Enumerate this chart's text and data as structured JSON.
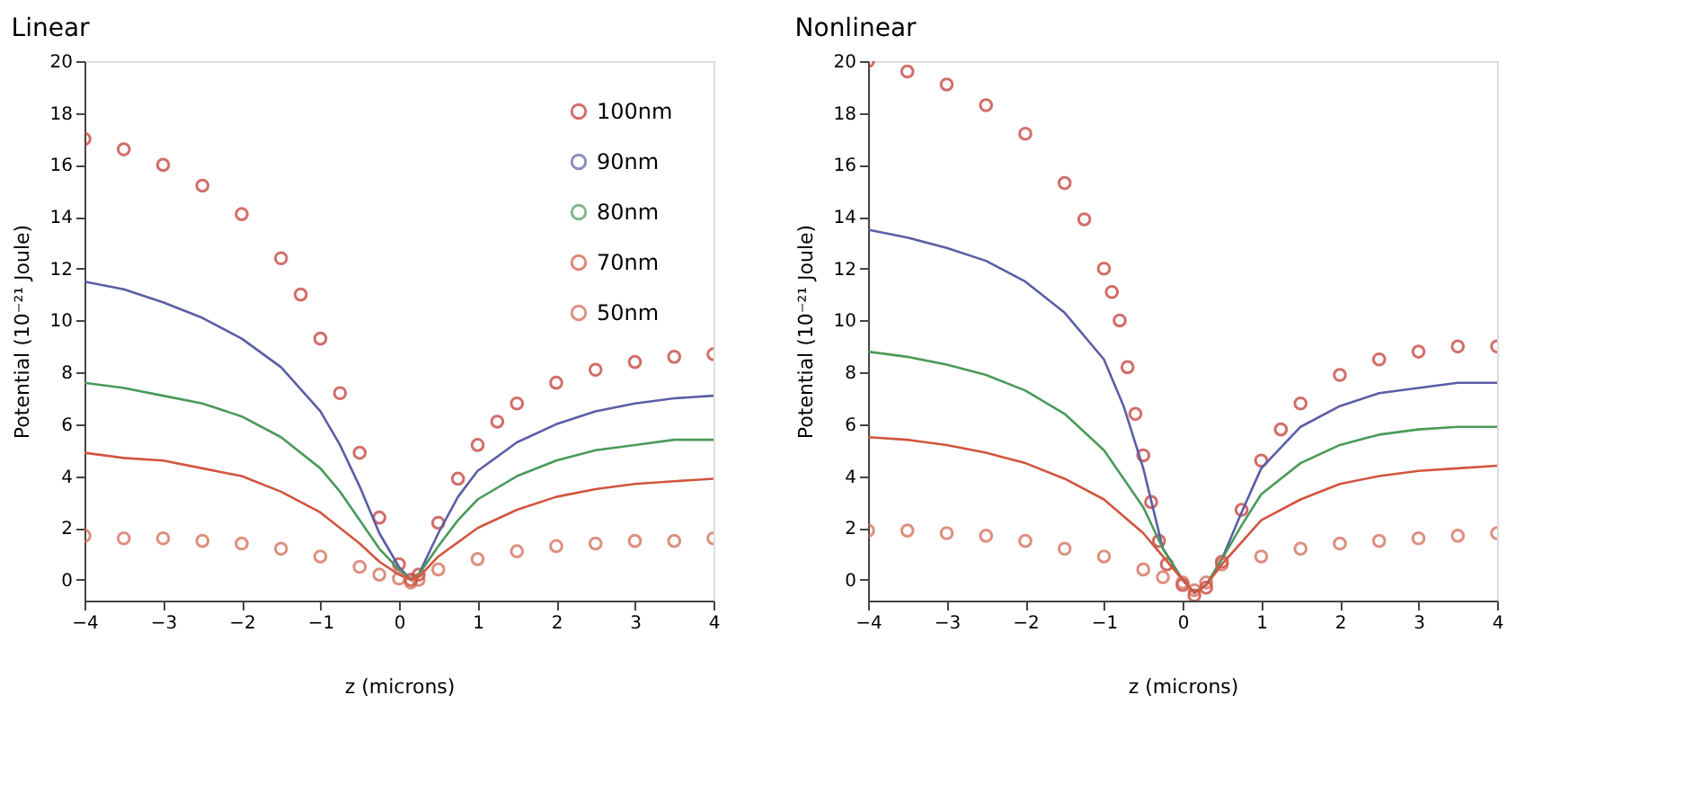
{
  "chart_data": [
    {
      "type": "line",
      "title": "Linear",
      "xlabel": "z (microns)",
      "ylabel": "Potential (10⁻²¹ Joule)",
      "xlim": [
        -4,
        4
      ],
      "xticks": [
        -4,
        -3,
        -2,
        -1,
        0,
        1,
        2,
        3,
        4
      ],
      "ylim": [
        -0.8,
        20
      ],
      "yticks": [
        0,
        2,
        4,
        6,
        8,
        10,
        12,
        14,
        16,
        18,
        20
      ],
      "grid": false,
      "legend": "top right",
      "series": [
        {
          "name": "100nm",
          "type": "scatter",
          "marker": "circle",
          "color": "#c0302a",
          "x": [
            -4,
            -3.5,
            -3,
            -2.5,
            -2,
            -1.5,
            -1.25,
            -1,
            -0.75,
            -0.5,
            -0.25,
            0,
            0.15,
            0.25,
            0.5,
            0.75,
            1,
            1.25,
            1.5,
            2,
            2.5,
            3,
            3.5,
            4
          ],
          "values": [
            17.0,
            16.6,
            16.0,
            15.2,
            14.1,
            12.4,
            11.0,
            9.3,
            7.2,
            4.9,
            2.4,
            0.6,
            0,
            0.2,
            2.2,
            3.9,
            5.2,
            6.1,
            6.8,
            7.6,
            8.1,
            8.4,
            8.6,
            8.7
          ]
        },
        {
          "name": "90nm",
          "color": "#5b5ea6",
          "x": [
            -4,
            -3.5,
            -3,
            -2.5,
            -2,
            -1.5,
            -1,
            -0.75,
            -0.5,
            -0.25,
            0,
            0.15,
            0.25,
            0.5,
            0.75,
            1,
            1.5,
            2,
            2.5,
            3,
            3.5,
            4
          ],
          "values": [
            11.5,
            11.2,
            10.7,
            10.1,
            9.3,
            8.2,
            6.5,
            5.2,
            3.6,
            1.8,
            0.5,
            0,
            0.2,
            1.8,
            3.2,
            4.2,
            5.3,
            6.0,
            6.5,
            6.8,
            7.0,
            7.1
          ]
        },
        {
          "name": "80nm",
          "color": "#4a9a5a",
          "x": [
            -4,
            -3.5,
            -3,
            -2.5,
            -2,
            -1.5,
            -1,
            -0.75,
            -0.5,
            -0.25,
            0,
            0.15,
            0.25,
            0.5,
            0.75,
            1,
            1.5,
            2,
            2.5,
            3,
            3.5,
            4
          ],
          "values": [
            7.6,
            7.4,
            7.1,
            6.8,
            6.3,
            5.5,
            4.3,
            3.4,
            2.3,
            1.2,
            0.4,
            0,
            0.2,
            1.3,
            2.3,
            3.1,
            4.0,
            4.6,
            5.0,
            5.2,
            5.4,
            5.4
          ]
        },
        {
          "name": "70nm",
          "color": "#d2553f",
          "x": [
            -4,
            -3.5,
            -3,
            -2.5,
            -2,
            -1.5,
            -1,
            -0.5,
            -0.25,
            0,
            0.15,
            0.25,
            0.5,
            1,
            1.5,
            2,
            2.5,
            3,
            3.5,
            4
          ],
          "values": [
            4.9,
            4.7,
            4.6,
            4.3,
            4.0,
            3.4,
            2.6,
            1.4,
            0.7,
            0.2,
            0,
            0.1,
            0.9,
            2.0,
            2.7,
            3.2,
            3.5,
            3.7,
            3.8,
            3.9
          ]
        },
        {
          "name": "50nm",
          "type": "scatter",
          "marker": "circle",
          "color": "#d0604a",
          "x": [
            -4,
            -3.5,
            -3,
            -2.5,
            -2,
            -1.5,
            -1,
            -0.5,
            -0.25,
            0,
            0.15,
            0.25,
            0.5,
            1,
            1.5,
            2,
            2.5,
            3,
            3.5,
            4
          ],
          "values": [
            1.7,
            1.6,
            1.6,
            1.5,
            1.4,
            1.2,
            0.9,
            0.5,
            0.2,
            0.05,
            -0.1,
            0,
            0.4,
            0.8,
            1.1,
            1.3,
            1.4,
            1.5,
            1.5,
            1.6
          ]
        }
      ]
    },
    {
      "type": "line",
      "title": "Nonlinear",
      "xlabel": "z (microns)",
      "ylabel": "Potential (10⁻²¹ Joule)",
      "xlim": [
        -4,
        4
      ],
      "xticks": [
        -4,
        -3,
        -2,
        -1,
        0,
        1,
        2,
        3,
        4
      ],
      "ylim": [
        -0.8,
        20
      ],
      "yticks": [
        0,
        2,
        4,
        6,
        8,
        10,
        12,
        14,
        16,
        18,
        20
      ],
      "grid": false,
      "legend": false,
      "series": [
        {
          "type": "scatter",
          "marker": "circle",
          "color": "#c0302a",
          "x": [
            -4,
            -3.5,
            -3,
            -2.5,
            -2,
            -1.5,
            -1.25,
            -1,
            -0.9,
            -0.8,
            -0.7,
            -0.6,
            -0.5,
            -0.4,
            -0.3,
            -0.2,
            0,
            0.15,
            0.3,
            0.5,
            0.75,
            1,
            1.25,
            1.5,
            2,
            2.5,
            3,
            3.5,
            4
          ],
          "values": [
            20.0,
            19.6,
            19.1,
            18.3,
            17.2,
            15.3,
            13.9,
            12.0,
            11.1,
            10.0,
            8.2,
            6.4,
            4.8,
            3.0,
            1.5,
            0.6,
            -0.2,
            -0.6,
            -0.3,
            0.7,
            2.7,
            4.6,
            5.8,
            6.8,
            7.9,
            8.5,
            8.8,
            9.0,
            9.0
          ]
        },
        {
          "color": "#5b5ea6",
          "x": [
            -4,
            -3.5,
            -3,
            -2.5,
            -2,
            -1.5,
            -1,
            -0.75,
            -0.5,
            -0.25,
            0,
            0.15,
            0.3,
            0.5,
            0.75,
            1,
            1.5,
            2,
            2.5,
            3,
            3.5,
            4
          ],
          "values": [
            13.5,
            13.2,
            12.8,
            12.3,
            11.5,
            10.3,
            8.5,
            6.7,
            4.3,
            1.2,
            0,
            -0.5,
            -0.2,
            0.8,
            2.6,
            4.3,
            5.9,
            6.7,
            7.2,
            7.4,
            7.6,
            7.6
          ]
        },
        {
          "color": "#4a9a5a",
          "x": [
            -4,
            -3.5,
            -3,
            -2.5,
            -2,
            -1.5,
            -1,
            -0.5,
            -0.25,
            0,
            0.15,
            0.3,
            0.5,
            0.75,
            1,
            1.5,
            2,
            2.5,
            3,
            3.5,
            4
          ],
          "values": [
            8.8,
            8.6,
            8.3,
            7.9,
            7.3,
            6.4,
            5.0,
            2.8,
            1.2,
            0,
            -0.5,
            -0.2,
            0.8,
            2.1,
            3.3,
            4.5,
            5.2,
            5.6,
            5.8,
            5.9,
            5.9
          ]
        },
        {
          "color": "#d2553f",
          "x": [
            -4,
            -3.5,
            -3,
            -2.5,
            -2,
            -1.5,
            -1,
            -0.5,
            -0.25,
            0,
            0.15,
            0.3,
            0.5,
            1,
            1.5,
            2,
            2.5,
            3,
            3.5,
            4
          ],
          "values": [
            5.5,
            5.4,
            5.2,
            4.9,
            4.5,
            3.9,
            3.1,
            1.8,
            0.9,
            0,
            -0.5,
            -0.2,
            0.6,
            2.3,
            3.1,
            3.7,
            4.0,
            4.2,
            4.3,
            4.4
          ]
        },
        {
          "type": "scatter",
          "marker": "circle",
          "color": "#d0604a",
          "x": [
            -4,
            -3.5,
            -3,
            -2.5,
            -2,
            -1.5,
            -1,
            -0.5,
            -0.25,
            0,
            0.15,
            0.3,
            0.5,
            1,
            1.5,
            2,
            2.5,
            3,
            3.5,
            4
          ],
          "values": [
            1.9,
            1.9,
            1.8,
            1.7,
            1.5,
            1.2,
            0.9,
            0.4,
            0.1,
            -0.1,
            -0.4,
            -0.1,
            0.6,
            0.9,
            1.2,
            1.4,
            1.5,
            1.6,
            1.7,
            1.8
          ]
        }
      ]
    }
  ]
}
